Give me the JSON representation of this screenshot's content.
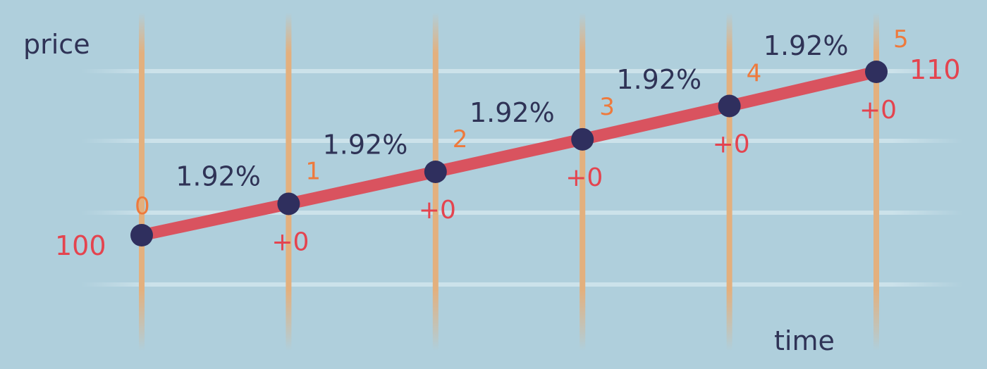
{
  "axes": {
    "y_label": "price",
    "x_label": "time"
  },
  "steps": [
    {
      "index": "0",
      "price": 100
    },
    {
      "index": "1",
      "price": 101.92,
      "delta": "+0",
      "growth": "1.92%"
    },
    {
      "index": "2",
      "price": 103.88,
      "delta": "+0",
      "growth": "1.92%"
    },
    {
      "index": "3",
      "price": 105.87,
      "delta": "+0",
      "growth": "1.92%"
    },
    {
      "index": "4",
      "price": 107.91,
      "delta": "+0",
      "growth": "1.92%"
    },
    {
      "index": "5",
      "price": 110,
      "delta": "+0",
      "growth": "1.92%"
    }
  ],
  "start_value": "100",
  "end_value": "110",
  "colors": {
    "background": "#afcfdc",
    "gridline": "#c9e0ea",
    "step_line": "#e3b07e",
    "price_line": "#d9535f",
    "point": "#2f2f5e",
    "percent_text": "#2f3356",
    "step_number_text": "#ee7a3c",
    "value_text": "#e4444f"
  }
}
